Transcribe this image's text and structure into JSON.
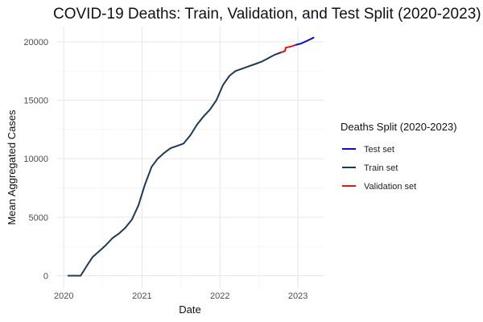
{
  "chart_data": {
    "type": "line",
    "title": "COVID-19 Deaths: Train, Validation, and Test Split (2020-2023)",
    "xlabel": "Date",
    "ylabel": "Mean Aggregated Cases",
    "xlim": [
      "2019-12-01",
      "2023-05-01"
    ],
    "ylim": [
      -1000,
      21300
    ],
    "x_ticks": [
      "2020-01-01",
      "2021-01-01",
      "2022-01-01",
      "2023-01-01"
    ],
    "x_tick_labels": [
      "2020",
      "2021",
      "2022",
      "2023"
    ],
    "y_ticks": [
      0,
      5000,
      10000,
      15000,
      20000
    ],
    "y_tick_labels": [
      "0",
      "5000",
      "10000",
      "15000",
      "20000"
    ],
    "grid": true,
    "legend": {
      "title": "Deaths Split (2020-2023)",
      "position": "right",
      "entries": [
        "Test set",
        "Train set",
        "Validation set"
      ]
    },
    "series": [
      {
        "name": "Train set",
        "color": "#1b3a5c",
        "points": [
          [
            "2020-01-22",
            0
          ],
          [
            "2020-03-20",
            0
          ],
          [
            "2020-04-20",
            900
          ],
          [
            "2020-05-15",
            1600
          ],
          [
            "2020-06-15",
            2100
          ],
          [
            "2020-07-15",
            2600
          ],
          [
            "2020-08-15",
            3200
          ],
          [
            "2020-09-15",
            3600
          ],
          [
            "2020-10-15",
            4100
          ],
          [
            "2020-11-15",
            4800
          ],
          [
            "2020-12-15",
            6000
          ],
          [
            "2021-01-15",
            7800
          ],
          [
            "2021-02-15",
            9300
          ],
          [
            "2021-03-15",
            10000
          ],
          [
            "2021-04-15",
            10500
          ],
          [
            "2021-05-15",
            10900
          ],
          [
            "2021-06-15",
            11100
          ],
          [
            "2021-07-15",
            11300
          ],
          [
            "2021-08-15",
            12000
          ],
          [
            "2021-09-15",
            12900
          ],
          [
            "2021-10-15",
            13600
          ],
          [
            "2021-11-15",
            14200
          ],
          [
            "2021-12-15",
            15000
          ],
          [
            "2022-01-15",
            16300
          ],
          [
            "2022-02-15",
            17100
          ],
          [
            "2022-03-15",
            17500
          ],
          [
            "2022-04-15",
            17700
          ],
          [
            "2022-05-15",
            17900
          ],
          [
            "2022-06-15",
            18100
          ],
          [
            "2022-07-15",
            18300
          ],
          [
            "2022-08-15",
            18600
          ],
          [
            "2022-09-15",
            18900
          ],
          [
            "2022-10-15",
            19100
          ]
        ]
      },
      {
        "name": "Validation set",
        "color": "#e8120c",
        "points": [
          [
            "2022-10-15",
            19100
          ],
          [
            "2022-11-01",
            19200
          ],
          [
            "2022-11-05",
            19500
          ],
          [
            "2022-12-01",
            19600
          ],
          [
            "2022-12-25",
            19750
          ]
        ]
      },
      {
        "name": "Test set",
        "color": "#0a0ad4",
        "points": [
          [
            "2022-12-25",
            19750
          ],
          [
            "2023-01-15",
            19850
          ],
          [
            "2023-02-15",
            20100
          ],
          [
            "2023-03-15",
            20350
          ]
        ]
      }
    ]
  }
}
